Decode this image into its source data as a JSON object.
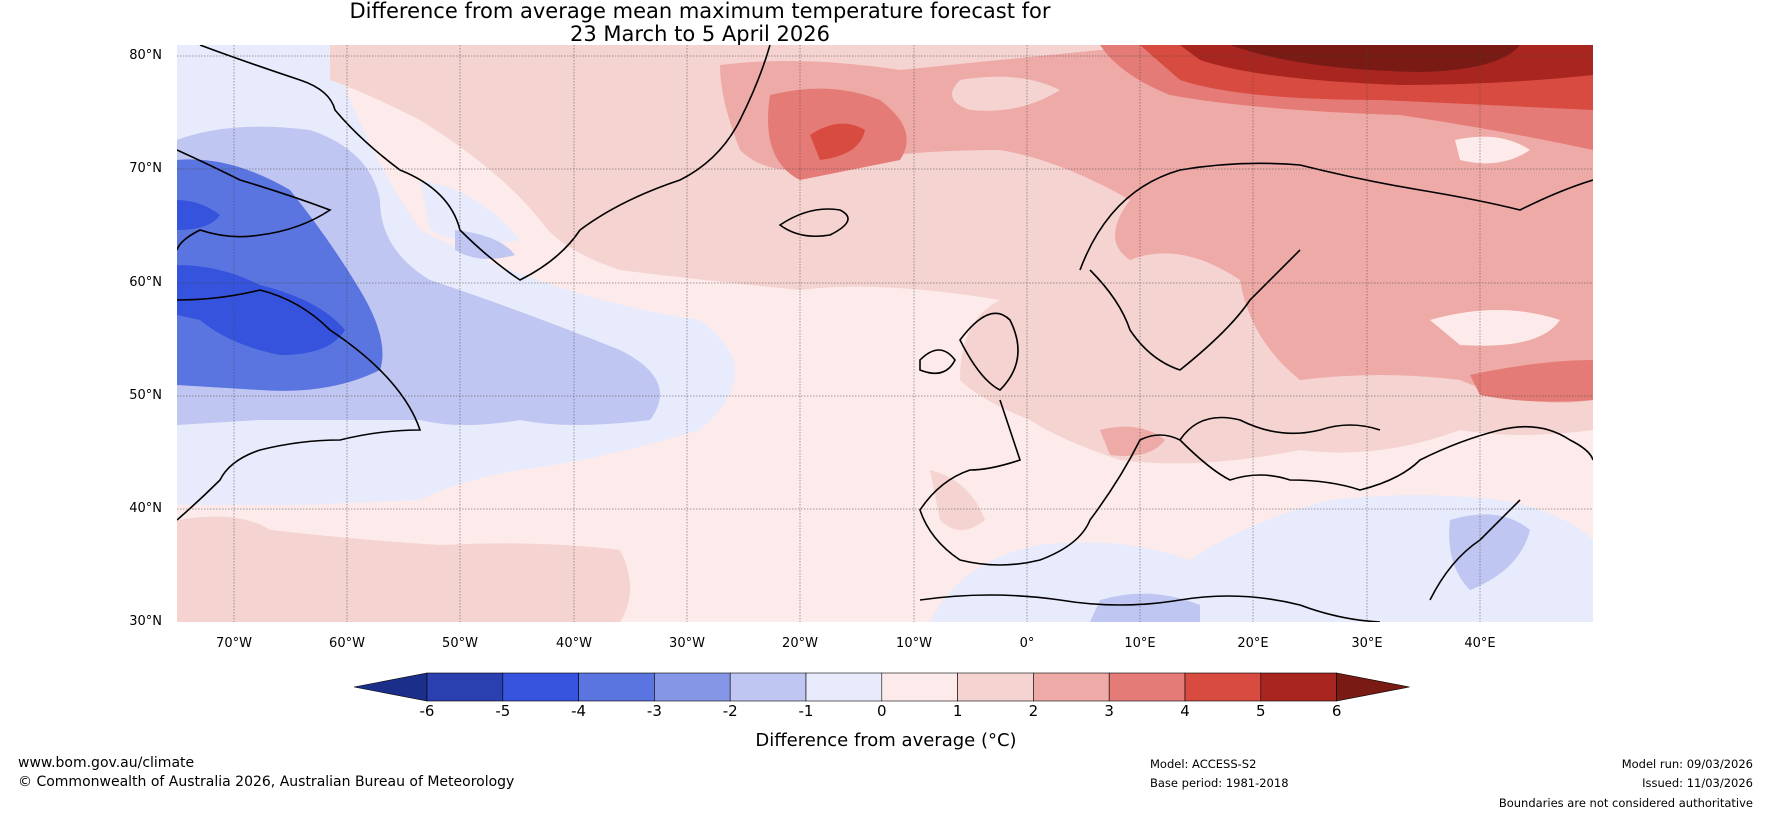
{
  "title": {
    "line1": "Difference from average mean maximum temperature forecast for",
    "line2": "23 March to 5 April 2026"
  },
  "lat_labels": [
    "80°N",
    "70°N",
    "60°N",
    "50°N",
    "40°N",
    "30°N"
  ],
  "lon_labels": [
    "70°W",
    "60°W",
    "50°W",
    "40°W",
    "30°W",
    "20°W",
    "10°W",
    "0°",
    "10°E",
    "20°E",
    "30°E",
    "40°E"
  ],
  "colorbar": {
    "ticks": [
      "-6",
      "-5",
      "-4",
      "-3",
      "-2",
      "-1",
      "0",
      "1",
      "2",
      "3",
      "4",
      "5",
      "6"
    ],
    "colors": [
      "#1a2e8a",
      "#2a3fb0",
      "#3553dc",
      "#5a74e0",
      "#8596e6",
      "#bfc6f2",
      "#e8ebfb",
      "#fcebea",
      "#f5d3d0",
      "#eeaaa6",
      "#e47b76",
      "#d84b40",
      "#a8261f",
      "#7a1a14"
    ],
    "label": "Difference from average (°C)"
  },
  "footer": {
    "website": "www.bom.gov.au/climate",
    "copyright": "© Commonwealth of Australia 2026, Australian Bureau of Meteorology",
    "model": "Model: ACCESS-S2",
    "base_period": "Base period: 1981-2018",
    "model_run": "Model run: 09/03/2026",
    "issued": "Issued: 11/03/2026",
    "disclaimer": "Boundaries are not considered authoritative"
  }
}
